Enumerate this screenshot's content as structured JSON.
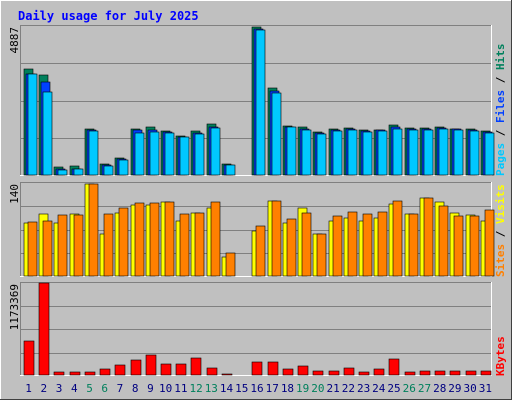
{
  "title": "Daily usage for July 2025",
  "colors": {
    "background": "#c0c0c0",
    "title": "#0000ff",
    "hits": "#00805c",
    "files": "#0040ff",
    "pages": "#00c8ff",
    "visits": "#ffff00",
    "sites": "#ff8000",
    "kbytes": "#ff0000",
    "weekend_day": "#00805c",
    "weekday": "#000080"
  },
  "chart_data": [
    {
      "type": "bar",
      "panel": "hits-files-pages",
      "ymax_label": "4887",
      "ylim": [
        0,
        4887
      ],
      "legend": [
        {
          "key": "pages",
          "label": "Pages"
        },
        {
          "key": "files",
          "label": "Files"
        },
        {
          "key": "hits",
          "label": "Hits"
        }
      ],
      "categories": [
        "1",
        "2",
        "3",
        "4",
        "5",
        "6",
        "7",
        "8",
        "9",
        "10",
        "11",
        "12",
        "13",
        "14",
        "15",
        "16",
        "17",
        "18",
        "19",
        "20",
        "21",
        "22",
        "23",
        "24",
        "25",
        "26",
        "27",
        "28",
        "29",
        "30",
        "31"
      ],
      "series": [
        {
          "name": "Hits",
          "key": "hits",
          "values": [
            3480,
            3280,
            250,
            280,
            1520,
            370,
            570,
            1520,
            1590,
            1440,
            1290,
            1440,
            1680,
            360,
            0,
            4860,
            2850,
            1620,
            1570,
            1410,
            1500,
            1550,
            1470,
            1490,
            1630,
            1550,
            1540,
            1570,
            1520,
            1500,
            1440
          ]
        },
        {
          "name": "Files",
          "key": "files",
          "values": [
            3300,
            3060,
            200,
            210,
            1480,
            330,
            520,
            1460,
            1470,
            1410,
            1250,
            1390,
            1590,
            340,
            0,
            4800,
            2760,
            1590,
            1520,
            1390,
            1460,
            1510,
            1430,
            1460,
            1570,
            1520,
            1500,
            1540,
            1500,
            1470,
            1400
          ]
        },
        {
          "name": "Pages",
          "key": "pages",
          "values": [
            3300,
            2720,
            180,
            190,
            1450,
            300,
            480,
            1380,
            1420,
            1380,
            1230,
            1350,
            1530,
            320,
            0,
            4740,
            2690,
            1560,
            1490,
            1360,
            1430,
            1480,
            1400,
            1440,
            1510,
            1490,
            1480,
            1520,
            1480,
            1440,
            1380
          ]
        }
      ]
    },
    {
      "type": "bar",
      "panel": "visits-sites",
      "ymax_label": "140",
      "ylim": [
        0,
        140
      ],
      "legend": [
        {
          "key": "sites",
          "label": "Sites"
        },
        {
          "key": "visits",
          "label": "Visits"
        }
      ],
      "categories": [
        "1",
        "2",
        "3",
        "4",
        "5",
        "6",
        "7",
        "8",
        "9",
        "10",
        "11",
        "12",
        "13",
        "14",
        "15",
        "16",
        "17",
        "18",
        "19",
        "20",
        "21",
        "22",
        "23",
        "24",
        "25",
        "26",
        "27",
        "28",
        "29",
        "30",
        "31"
      ],
      "series": [
        {
          "name": "Visits",
          "key": "visits",
          "values": [
            80,
            93,
            80,
            93,
            138,
            63,
            95,
            107,
            107,
            112,
            83,
            95,
            102,
            28,
            0,
            68,
            113,
            80,
            102,
            63,
            83,
            88,
            83,
            88,
            108,
            93,
            117,
            112,
            95,
            92,
            83
          ]
        },
        {
          "name": "Sites",
          "key": "sites",
          "values": [
            82,
            83,
            92,
            92,
            138,
            93,
            103,
            110,
            110,
            112,
            94,
            95,
            112,
            35,
            0,
            76,
            113,
            86,
            95,
            63,
            90,
            97,
            93,
            97,
            113,
            93,
            117,
            105,
            90,
            90,
            100
          ]
        }
      ]
    },
    {
      "type": "bar",
      "panel": "kbytes",
      "ymax_label": "1173369",
      "ylim": [
        0,
        1173369
      ],
      "legend": [
        {
          "key": "kbytes",
          "label": "KBytes"
        }
      ],
      "categories": [
        "1",
        "2",
        "3",
        "4",
        "5",
        "6",
        "7",
        "8",
        "9",
        "10",
        "11",
        "12",
        "13",
        "14",
        "15",
        "16",
        "17",
        "18",
        "19",
        "20",
        "21",
        "22",
        "23",
        "24",
        "25",
        "26",
        "27",
        "28",
        "29",
        "30",
        "31"
      ],
      "series": [
        {
          "name": "KBytes",
          "key": "kbytes",
          "values": [
            430000,
            1173369,
            35000,
            35000,
            40000,
            80000,
            125000,
            190000,
            260000,
            140000,
            145000,
            220000,
            90000,
            8000,
            0,
            165000,
            165000,
            75000,
            110000,
            50000,
            50000,
            90000,
            35000,
            75000,
            200000,
            35000,
            45000,
            45000,
            45000,
            45000,
            45000
          ]
        }
      ]
    }
  ],
  "weekend_days": [
    "5",
    "6",
    "12",
    "13",
    "19",
    "20",
    "26",
    "27"
  ]
}
